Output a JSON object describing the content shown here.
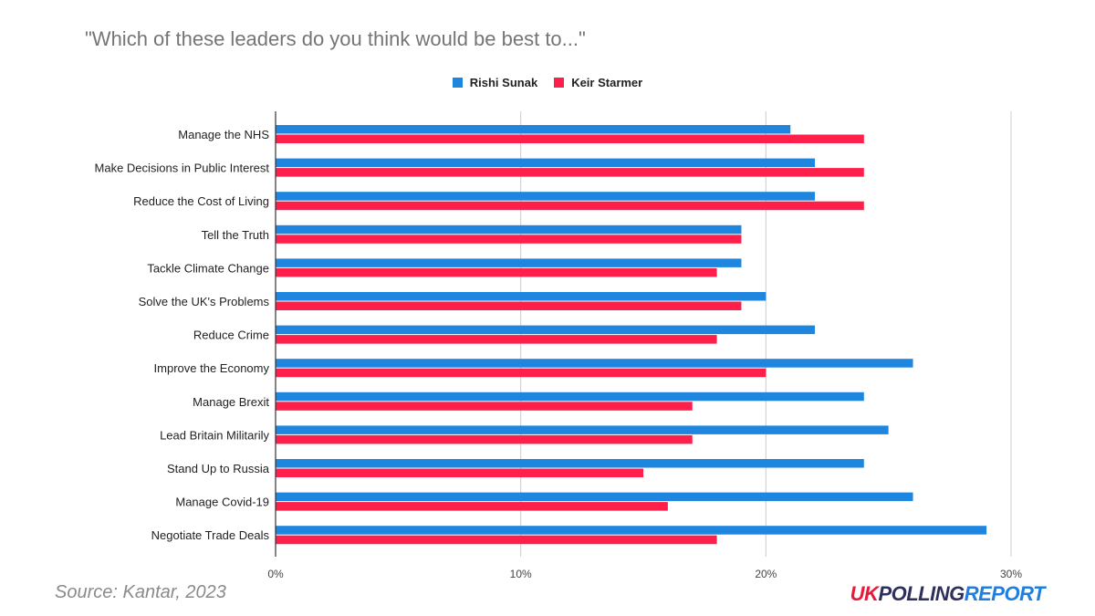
{
  "chart_data": {
    "type": "bar",
    "orientation": "horizontal",
    "title": "\"Which of these leaders do you think would be best to...\"",
    "xlim": [
      0,
      30
    ],
    "ticks": [
      "0%",
      "10%",
      "20%",
      "30%"
    ],
    "tick_values": [
      0,
      10,
      20,
      30
    ],
    "grid": true,
    "legend_position": "top",
    "categories": [
      "Manage the NHS",
      "Make Decisions in Public Interest",
      "Reduce the Cost of Living",
      "Tell the Truth",
      "Tackle Climate Change",
      "Solve the UK's Problems",
      "Reduce Crime",
      "Improve the Economy",
      "Manage Brexit",
      "Lead Britain Militarily",
      "Stand Up to Russia",
      "Manage Covid-19",
      "Negotiate Trade Deals"
    ],
    "series": [
      {
        "name": "Rishi Sunak",
        "color": "#1f86e0",
        "values": [
          21,
          22,
          22,
          19,
          19,
          20,
          22,
          26,
          24,
          25,
          24,
          26,
          29
        ]
      },
      {
        "name": "Keir Starmer",
        "color": "#ff1f4b",
        "values": [
          24,
          24,
          24,
          19,
          18,
          19,
          18,
          20,
          17,
          17,
          15,
          16,
          18
        ]
      }
    ]
  },
  "footer": {
    "source": "Source: Kantar, 2023",
    "logo_uk": "UK",
    "logo_polling": "POLLING",
    "logo_report": "REPORT"
  }
}
